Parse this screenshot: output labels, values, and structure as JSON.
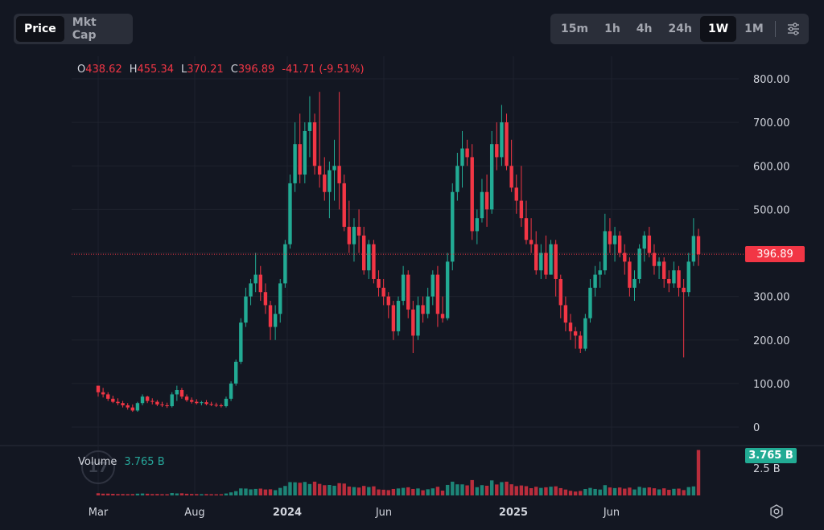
{
  "toolbar": {
    "left_tabs": [
      {
        "label": "Price",
        "active": true
      },
      {
        "label": "Mkt Cap",
        "active": false
      }
    ],
    "intervals": [
      {
        "label": "15m",
        "active": false
      },
      {
        "label": "1h",
        "active": false
      },
      {
        "label": "4h",
        "active": false
      },
      {
        "label": "24h",
        "active": false
      },
      {
        "label": "1W",
        "active": true
      },
      {
        "label": "1M",
        "active": false
      }
    ],
    "settings_icon": "sliders-icon"
  },
  "legend": {
    "o_label": "O",
    "o_value": "438.62",
    "h_label": "H",
    "h_value": "455.34",
    "l_label": "L",
    "l_value": "370.21",
    "c_label": "C",
    "c_value": "396.89",
    "change": "-41.71 (-9.51%)"
  },
  "volume_legend": {
    "label": "Volume",
    "value": "3.765 B"
  },
  "price_tag": "396.89",
  "volume_tag": "3.765 B",
  "volume_axis_label": "2.5 B",
  "footer_icon": "settings-gear-icon",
  "colors": {
    "background": "#131722",
    "up": "#22ab94",
    "down": "#f23645",
    "grid": "#1e222d",
    "axis_text": "#d1d4dc"
  },
  "chart_data": {
    "type": "candlestick",
    "interval": "1W",
    "y_ticks": [
      "800.00",
      "700.00",
      "600.00",
      "500.00",
      "400.00",
      "300.00",
      "200.00",
      "100.00",
      "0"
    ],
    "ylim": [
      0,
      800
    ],
    "x_ticks": [
      "Mar",
      "Aug",
      "2024",
      "Jun",
      "2025",
      "Jun"
    ],
    "last_price": 396.89,
    "ohlc": [
      [
        95,
        95,
        70,
        80
      ],
      [
        80,
        90,
        68,
        75
      ],
      [
        75,
        80,
        60,
        65
      ],
      [
        65,
        72,
        55,
        58
      ],
      [
        58,
        66,
        50,
        55
      ],
      [
        55,
        60,
        45,
        50
      ],
      [
        50,
        55,
        40,
        45
      ],
      [
        45,
        52,
        35,
        38
      ],
      [
        38,
        58,
        35,
        55
      ],
      [
        55,
        75,
        50,
        70
      ],
      [
        70,
        72,
        55,
        60
      ],
      [
        60,
        66,
        52,
        58
      ],
      [
        58,
        62,
        48,
        52
      ],
      [
        52,
        58,
        46,
        50
      ],
      [
        50,
        56,
        44,
        48
      ],
      [
        48,
        80,
        45,
        75
      ],
      [
        75,
        95,
        60,
        85
      ],
      [
        85,
        90,
        65,
        70
      ],
      [
        70,
        75,
        58,
        62
      ],
      [
        62,
        68,
        54,
        58
      ],
      [
        58,
        64,
        52,
        55
      ],
      [
        55,
        60,
        50,
        57
      ],
      [
        57,
        62,
        50,
        53
      ],
      [
        53,
        58,
        48,
        51
      ],
      [
        51,
        56,
        46,
        50
      ],
      [
        50,
        54,
        45,
        48
      ],
      [
        48,
        70,
        45,
        65
      ],
      [
        65,
        105,
        60,
        100
      ],
      [
        100,
        155,
        95,
        150
      ],
      [
        150,
        250,
        145,
        240
      ],
      [
        240,
        320,
        230,
        300
      ],
      [
        300,
        340,
        280,
        330
      ],
      [
        330,
        400,
        310,
        350
      ],
      [
        350,
        370,
        290,
        310
      ],
      [
        310,
        330,
        260,
        280
      ],
      [
        280,
        290,
        200,
        230
      ],
      [
        230,
        280,
        200,
        260
      ],
      [
        260,
        340,
        240,
        330
      ],
      [
        330,
        430,
        320,
        420
      ],
      [
        420,
        580,
        410,
        560
      ],
      [
        560,
        700,
        540,
        650
      ],
      [
        650,
        720,
        560,
        580
      ],
      [
        580,
        700,
        560,
        680
      ],
      [
        680,
        760,
        620,
        700
      ],
      [
        700,
        720,
        580,
        600
      ],
      [
        600,
        770,
        550,
        580
      ],
      [
        580,
        620,
        520,
        540
      ],
      [
        540,
        610,
        480,
        590
      ],
      [
        590,
        660,
        520,
        600
      ],
      [
        600,
        770,
        500,
        560
      ],
      [
        560,
        580,
        450,
        460
      ],
      [
        460,
        520,
        400,
        420
      ],
      [
        420,
        480,
        380,
        460
      ],
      [
        460,
        500,
        400,
        440
      ],
      [
        440,
        460,
        350,
        360
      ],
      [
        360,
        430,
        340,
        420
      ],
      [
        420,
        430,
        330,
        340
      ],
      [
        340,
        360,
        300,
        320
      ],
      [
        320,
        340,
        280,
        300
      ],
      [
        300,
        310,
        250,
        280
      ],
      [
        280,
        290,
        200,
        220
      ],
      [
        220,
        300,
        210,
        290
      ],
      [
        290,
        370,
        280,
        350
      ],
      [
        350,
        360,
        250,
        270
      ],
      [
        270,
        290,
        170,
        210
      ],
      [
        210,
        300,
        200,
        280
      ],
      [
        280,
        300,
        240,
        260
      ],
      [
        260,
        320,
        250,
        300
      ],
      [
        300,
        360,
        280,
        350
      ],
      [
        350,
        370,
        230,
        260
      ],
      [
        260,
        300,
        240,
        250
      ],
      [
        250,
        400,
        245,
        380
      ],
      [
        380,
        560,
        360,
        540
      ],
      [
        540,
        630,
        520,
        600
      ],
      [
        600,
        680,
        550,
        640
      ],
      [
        640,
        660,
        600,
        620
      ],
      [
        620,
        650,
        430,
        450
      ],
      [
        450,
        500,
        420,
        480
      ],
      [
        480,
        570,
        470,
        540
      ],
      [
        540,
        580,
        460,
        500
      ],
      [
        500,
        680,
        490,
        650
      ],
      [
        650,
        700,
        590,
        620
      ],
      [
        620,
        740,
        600,
        700
      ],
      [
        700,
        720,
        590,
        600
      ],
      [
        600,
        660,
        540,
        550
      ],
      [
        550,
        580,
        490,
        520
      ],
      [
        520,
        600,
        460,
        480
      ],
      [
        480,
        520,
        420,
        430
      ],
      [
        430,
        480,
        400,
        420
      ],
      [
        420,
        450,
        350,
        360
      ],
      [
        360,
        420,
        340,
        400
      ],
      [
        400,
        440,
        340,
        350
      ],
      [
        350,
        430,
        350,
        420
      ],
      [
        420,
        430,
        300,
        340
      ],
      [
        340,
        350,
        250,
        280
      ],
      [
        280,
        300,
        220,
        240
      ],
      [
        240,
        260,
        200,
        220
      ],
      [
        220,
        230,
        180,
        210
      ],
      [
        210,
        220,
        170,
        180
      ],
      [
        180,
        260,
        175,
        250
      ],
      [
        250,
        340,
        240,
        320
      ],
      [
        320,
        370,
        300,
        350
      ],
      [
        350,
        380,
        320,
        360
      ],
      [
        360,
        490,
        350,
        450
      ],
      [
        450,
        480,
        400,
        420
      ],
      [
        420,
        460,
        380,
        440
      ],
      [
        440,
        450,
        390,
        400
      ],
      [
        400,
        420,
        350,
        380
      ],
      [
        380,
        390,
        300,
        320
      ],
      [
        320,
        360,
        290,
        340
      ],
      [
        340,
        420,
        330,
        410
      ],
      [
        410,
        450,
        380,
        440
      ],
      [
        440,
        460,
        390,
        400
      ],
      [
        400,
        420,
        350,
        370
      ],
      [
        370,
        390,
        340,
        380
      ],
      [
        380,
        390,
        320,
        340
      ],
      [
        340,
        360,
        310,
        330
      ],
      [
        330,
        380,
        320,
        360
      ],
      [
        360,
        370,
        300,
        320
      ],
      [
        320,
        340,
        160,
        310
      ],
      [
        310,
        400,
        300,
        380
      ],
      [
        380,
        480,
        370,
        439
      ],
      [
        438.62,
        455.34,
        370.21,
        396.89
      ]
    ],
    "volume_scale_label": "2.5 B",
    "volume_last": 3.765
  }
}
